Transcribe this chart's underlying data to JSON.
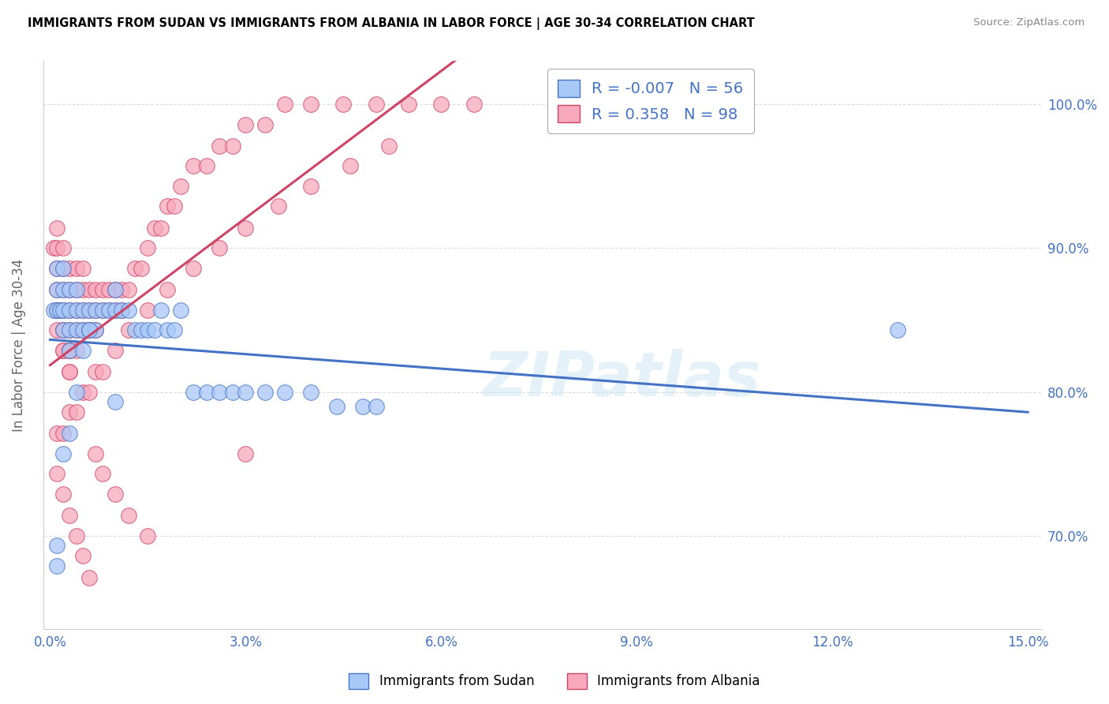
{
  "title": "IMMIGRANTS FROM SUDAN VS IMMIGRANTS FROM ALBANIA IN LABOR FORCE | AGE 30-34 CORRELATION CHART",
  "source": "Source: ZipAtlas.com",
  "ylabel": "In Labor Force | Age 30-34",
  "xlim": [
    -0.001,
    0.152
  ],
  "ylim": [
    0.635,
    1.03
  ],
  "xticks": [
    0.0,
    0.03,
    0.06,
    0.09,
    0.12,
    0.15
  ],
  "xticklabels": [
    "0.0%",
    "3.0%",
    "6.0%",
    "9.0%",
    "12.0%",
    "15.0%"
  ],
  "yticks_right": [
    0.7,
    0.8,
    0.9,
    1.0
  ],
  "yticklabels_right": [
    "70.0%",
    "80.0%",
    "90.0%",
    "100.0%"
  ],
  "sudan_fill": "#a8c8f8",
  "albania_fill": "#f8a8bc",
  "sudan_edge": "#4472c4",
  "albania_edge": "#cc4466",
  "trend_sudan_color": "#4472c4",
  "trend_albania_color": "#cc4466",
  "legend_r_sudan": "-0.007",
  "legend_n_sudan": "56",
  "legend_r_albania": "0.358",
  "legend_n_albania": "98",
  "legend_label_sudan": "Immigrants from Sudan",
  "legend_label_albania": "Immigrants from Albania",
  "watermark_text": "ZIPatlas",
  "sudan_x": [
    0.0005,
    0.001,
    0.001,
    0.001,
    0.0015,
    0.002,
    0.002,
    0.002,
    0.002,
    0.003,
    0.003,
    0.003,
    0.003,
    0.004,
    0.004,
    0.004,
    0.005,
    0.005,
    0.005,
    0.006,
    0.006,
    0.007,
    0.007,
    0.008,
    0.009,
    0.01,
    0.01,
    0.011,
    0.012,
    0.013,
    0.014,
    0.015,
    0.016,
    0.017,
    0.018,
    0.019,
    0.02,
    0.022,
    0.024,
    0.026,
    0.028,
    0.03,
    0.033,
    0.036,
    0.04,
    0.044,
    0.048,
    0.002,
    0.004,
    0.006,
    0.001,
    0.13,
    0.001,
    0.003,
    0.01,
    0.05
  ],
  "sudan_y": [
    0.857,
    0.857,
    0.871,
    0.886,
    0.857,
    0.843,
    0.857,
    0.871,
    0.886,
    0.829,
    0.843,
    0.857,
    0.871,
    0.843,
    0.857,
    0.871,
    0.829,
    0.843,
    0.857,
    0.843,
    0.857,
    0.843,
    0.857,
    0.857,
    0.857,
    0.857,
    0.871,
    0.857,
    0.857,
    0.843,
    0.843,
    0.843,
    0.843,
    0.857,
    0.843,
    0.843,
    0.857,
    0.8,
    0.8,
    0.8,
    0.8,
    0.8,
    0.8,
    0.8,
    0.8,
    0.79,
    0.79,
    0.757,
    0.8,
    0.843,
    0.693,
    0.843,
    0.679,
    0.771,
    0.793,
    0.79
  ],
  "albania_x": [
    0.0005,
    0.001,
    0.001,
    0.001,
    0.001,
    0.001,
    0.002,
    0.002,
    0.002,
    0.002,
    0.002,
    0.002,
    0.003,
    0.003,
    0.003,
    0.003,
    0.003,
    0.003,
    0.004,
    0.004,
    0.004,
    0.004,
    0.004,
    0.005,
    0.005,
    0.005,
    0.005,
    0.006,
    0.006,
    0.006,
    0.007,
    0.007,
    0.007,
    0.008,
    0.008,
    0.009,
    0.009,
    0.01,
    0.01,
    0.011,
    0.011,
    0.012,
    0.013,
    0.014,
    0.015,
    0.016,
    0.017,
    0.018,
    0.019,
    0.02,
    0.022,
    0.024,
    0.026,
    0.028,
    0.03,
    0.033,
    0.036,
    0.04,
    0.045,
    0.05,
    0.055,
    0.06,
    0.065,
    0.001,
    0.002,
    0.003,
    0.004,
    0.005,
    0.006,
    0.007,
    0.008,
    0.01,
    0.012,
    0.015,
    0.018,
    0.022,
    0.026,
    0.03,
    0.035,
    0.04,
    0.046,
    0.052,
    0.001,
    0.002,
    0.003,
    0.004,
    0.005,
    0.006,
    0.007,
    0.008,
    0.01,
    0.012,
    0.015,
    0.03,
    0.001,
    0.001,
    0.002,
    0.002,
    0.003,
    0.003
  ],
  "albania_y": [
    0.9,
    0.857,
    0.871,
    0.886,
    0.9,
    0.914,
    0.829,
    0.843,
    0.857,
    0.871,
    0.886,
    0.9,
    0.814,
    0.829,
    0.843,
    0.857,
    0.871,
    0.886,
    0.829,
    0.843,
    0.857,
    0.871,
    0.886,
    0.843,
    0.857,
    0.871,
    0.886,
    0.843,
    0.857,
    0.871,
    0.843,
    0.857,
    0.871,
    0.857,
    0.871,
    0.857,
    0.871,
    0.857,
    0.871,
    0.857,
    0.871,
    0.871,
    0.886,
    0.886,
    0.9,
    0.914,
    0.914,
    0.929,
    0.929,
    0.943,
    0.957,
    0.957,
    0.971,
    0.971,
    0.986,
    0.986,
    1.0,
    1.0,
    1.0,
    1.0,
    1.0,
    1.0,
    1.0,
    0.771,
    0.771,
    0.786,
    0.786,
    0.8,
    0.8,
    0.814,
    0.814,
    0.829,
    0.843,
    0.857,
    0.871,
    0.886,
    0.9,
    0.914,
    0.929,
    0.943,
    0.957,
    0.971,
    0.743,
    0.729,
    0.714,
    0.7,
    0.686,
    0.671,
    0.757,
    0.743,
    0.729,
    0.714,
    0.7,
    0.757,
    0.843,
    0.857,
    0.829,
    0.843,
    0.814,
    0.829
  ],
  "trend_albania_x0": 0.0,
  "trend_albania_x1": 0.065,
  "trend_albania_xdash1": 0.09,
  "background_color": "#ffffff",
  "grid_color": "#dddddd",
  "tick_color": "#4472c4"
}
